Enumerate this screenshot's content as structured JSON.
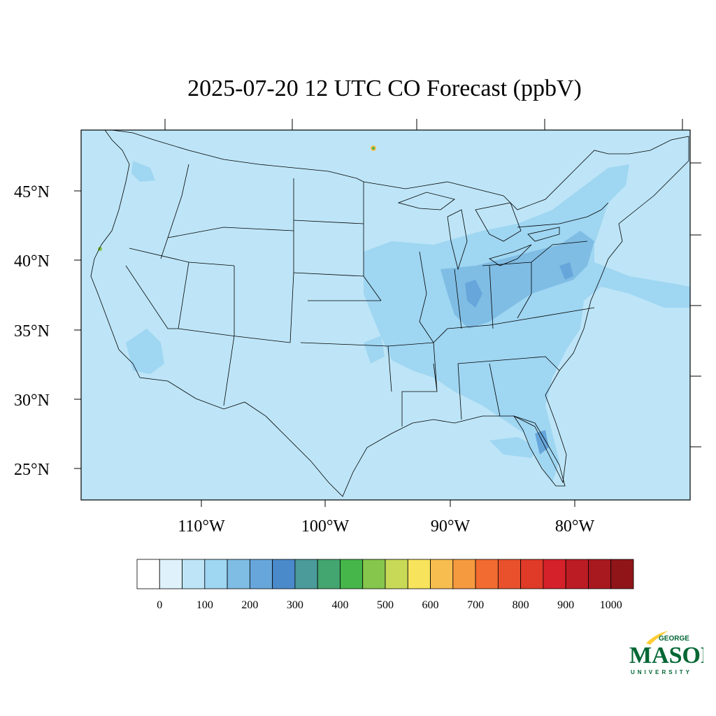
{
  "title": "2025-07-20 12 UTC CO Forecast (ppbV)",
  "map": {
    "region": "Contiguous United States",
    "lat_labels": [
      "45°N",
      "40°N",
      "35°N",
      "30°N",
      "25°N"
    ],
    "lon_labels": [
      "110°W",
      "100°W",
      "90°W",
      "80°W"
    ],
    "background_level_color": "#bde5f7",
    "ocean_color": "#bde5f7",
    "enhanced_color": "#9fd6f2",
    "high_color": "#7fbfe4"
  },
  "colorbar": {
    "labels": [
      "0",
      "100",
      "200",
      "300",
      "400",
      "500",
      "600",
      "700",
      "800",
      "900",
      "1000"
    ],
    "colors": [
      "#ffffff",
      "#dff2fb",
      "#bde5f7",
      "#9fd6f2",
      "#7fbde4",
      "#66a6db",
      "#4a8acb",
      "#4a9b9a",
      "#43a56f",
      "#46b54a",
      "#86c64c",
      "#c8d957",
      "#f7e35c",
      "#f7bd4f",
      "#f69a3f",
      "#f26b30",
      "#e8512c",
      "#e03a28",
      "#d5212a",
      "#bc1c24",
      "#a8191f",
      "#8f1519"
    ]
  },
  "logo": {
    "line1": "GEORGE",
    "line2": "MASON",
    "line3": "UNIVERSITY",
    "green": "#006633",
    "gold": "#ffcc33"
  }
}
